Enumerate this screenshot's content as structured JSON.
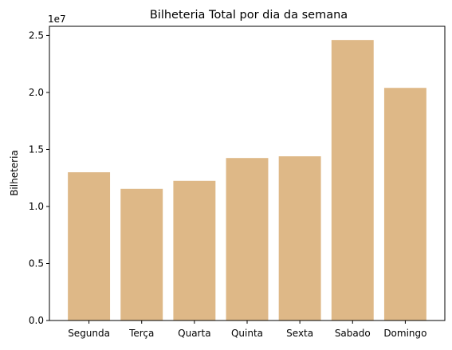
{
  "chart_data": {
    "type": "bar",
    "title": "Bilheteria Total por dia da semana",
    "xlabel": "",
    "ylabel": "Bilheteria",
    "offset_label": "1e7",
    "categories": [
      "Segunda",
      "Terça",
      "Quarta",
      "Quinta",
      "Sexta",
      "Sabado",
      "Domingo"
    ],
    "values": [
      13000000,
      11550000,
      12250000,
      14250000,
      14400000,
      24600000,
      20400000
    ],
    "ylim": [
      0,
      25800000
    ],
    "yticks": [
      0,
      5000000,
      10000000,
      15000000,
      20000000,
      25000000
    ],
    "ytick_labels": [
      "0.0",
      "0.5",
      "1.0",
      "1.5",
      "2.0",
      "2.5"
    ],
    "bar_color": "#deb887",
    "grid": false,
    "legend": "none"
  }
}
